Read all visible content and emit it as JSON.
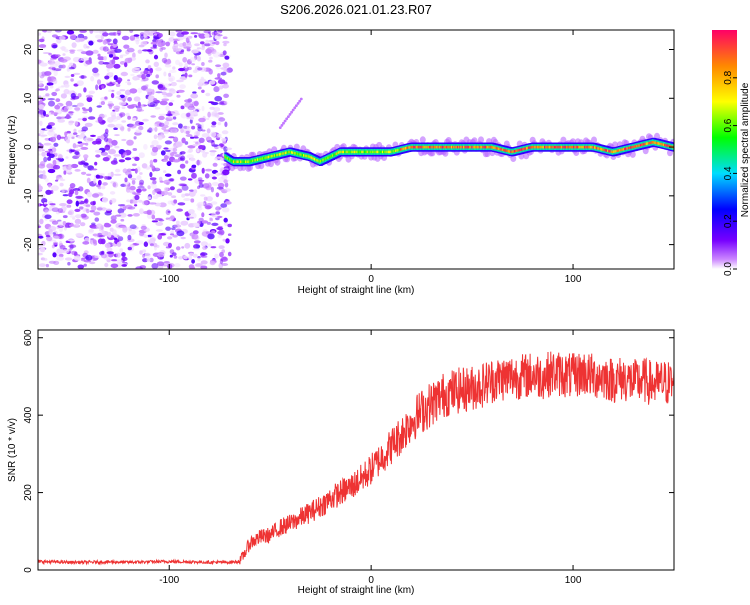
{
  "page_title": "S206.2026.021.01.23.R07",
  "chart_data": [
    {
      "type": "heatmap",
      "title": "S206.2026.021.01.23.R07",
      "xlabel": "Height of straight line (km)",
      "ylabel": "Frequency (Hz)",
      "xlim": [
        -165,
        150
      ],
      "ylim": [
        -25,
        24
      ],
      "x_ticks": [
        -100,
        0,
        100
      ],
      "y_ticks": [
        -20,
        -10,
        0,
        10,
        20
      ],
      "noise_region_x": [
        -165,
        -70
      ],
      "signal_track": {
        "x": [
          -72,
          -68,
          -60,
          -50,
          -40,
          -30,
          -25,
          -20,
          -15,
          -10,
          0,
          10,
          20,
          30,
          40,
          50,
          60,
          70,
          80,
          90,
          100,
          110,
          120,
          130,
          140,
          150
        ],
        "y": [
          -2,
          -3,
          -3,
          -2,
          -1,
          -2,
          -3,
          -2,
          -1,
          -1,
          -1,
          -1,
          0,
          0,
          0,
          0,
          0,
          -1,
          0,
          0,
          0,
          0,
          -1,
          0,
          1,
          0
        ]
      },
      "colorbar": {
        "label": "Normalized spectral amplitude",
        "range": [
          0.0,
          1.0
        ],
        "ticks": [
          0.0,
          0.2,
          0.4,
          0.6,
          0.8
        ]
      }
    },
    {
      "type": "line",
      "xlabel": "Height of straight line (km)",
      "ylabel": "SNR (10 * v/v)",
      "xlim": [
        -165,
        150
      ],
      "ylim": [
        0,
        620
      ],
      "x_ticks": [
        -100,
        0,
        100
      ],
      "y_ticks": [
        0,
        200,
        400,
        600
      ],
      "series": [
        {
          "color": "#ee3333",
          "x": [
            -165,
            -150,
            -140,
            -130,
            -120,
            -110,
            -100,
            -90,
            -80,
            -70,
            -65,
            -62,
            -60,
            -55,
            -50,
            -45,
            -40,
            -35,
            -30,
            -25,
            -20,
            -15,
            -10,
            -5,
            0,
            5,
            10,
            15,
            20,
            25,
            30,
            35,
            40,
            45,
            50,
            55,
            60,
            65,
            70,
            75,
            80,
            85,
            90,
            95,
            100,
            105,
            110,
            115,
            120,
            125,
            130,
            135,
            140,
            145,
            150
          ],
          "y": [
            22,
            20,
            20,
            21,
            20,
            21,
            22,
            21,
            20,
            20,
            22,
            50,
            70,
            85,
            90,
            110,
            120,
            135,
            150,
            165,
            185,
            200,
            215,
            235,
            260,
            290,
            320,
            350,
            385,
            410,
            430,
            450,
            460,
            465,
            470,
            478,
            490,
            495,
            500,
            500,
            505,
            500,
            510,
            505,
            500,
            510,
            500,
            500,
            490,
            495,
            485,
            490,
            480,
            485,
            480
          ]
        }
      ]
    }
  ]
}
